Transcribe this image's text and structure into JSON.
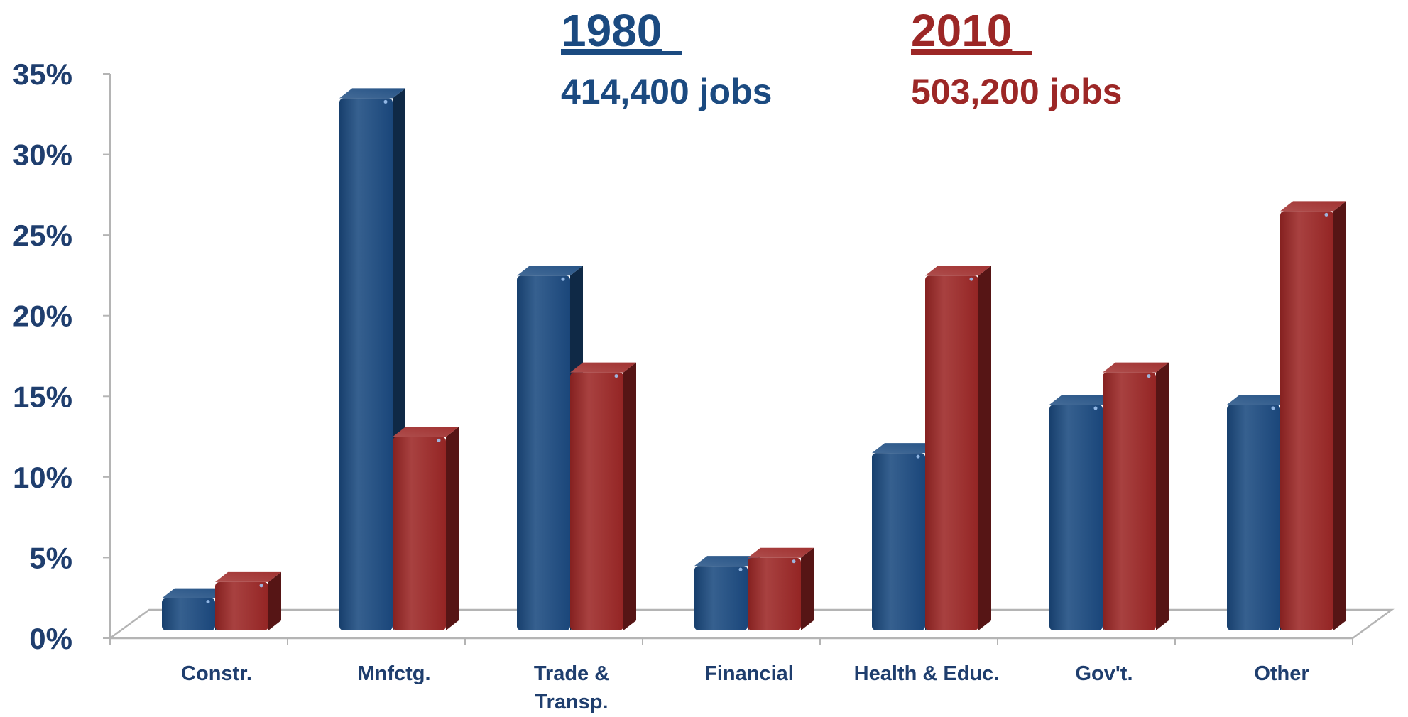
{
  "chart_data": {
    "type": "bar",
    "categories": [
      "Constr.",
      "Mnfctg.",
      "Trade & Transp.",
      "Financial",
      "Health & Educ.",
      "Gov't.",
      "Other"
    ],
    "category_lines": [
      [
        "Constr."
      ],
      [
        "Mnfctg."
      ],
      [
        "Trade &",
        "Transp."
      ],
      [
        "Financial"
      ],
      [
        "Health & Educ."
      ],
      [
        "Gov't."
      ],
      [
        "Other"
      ]
    ],
    "series": [
      {
        "name": "1980",
        "subtitle": "414,400 jobs",
        "color": "#1b4a80",
        "values": [
          2,
          33,
          22,
          4,
          11,
          14,
          14
        ]
      },
      {
        "name": "2010",
        "subtitle": "503,200 jobs",
        "color": "#9c2726",
        "values": [
          3,
          12,
          16,
          4.5,
          22,
          16,
          26
        ]
      }
    ],
    "y_ticks": [
      "0%",
      "5%",
      "10%",
      "15%",
      "20%",
      "25%",
      "30%",
      "35%"
    ],
    "ylim": [
      0,
      35
    ],
    "y_unit": "%",
    "grid": false,
    "legend_position": "top",
    "three_d": true,
    "colors": {
      "axis_text": "#1f3e6e",
      "category_text": "#1f3e6e",
      "axis_line": "#b4b4b4",
      "series_1980": "#1b4a80",
      "series_2010": "#9c2726"
    }
  }
}
